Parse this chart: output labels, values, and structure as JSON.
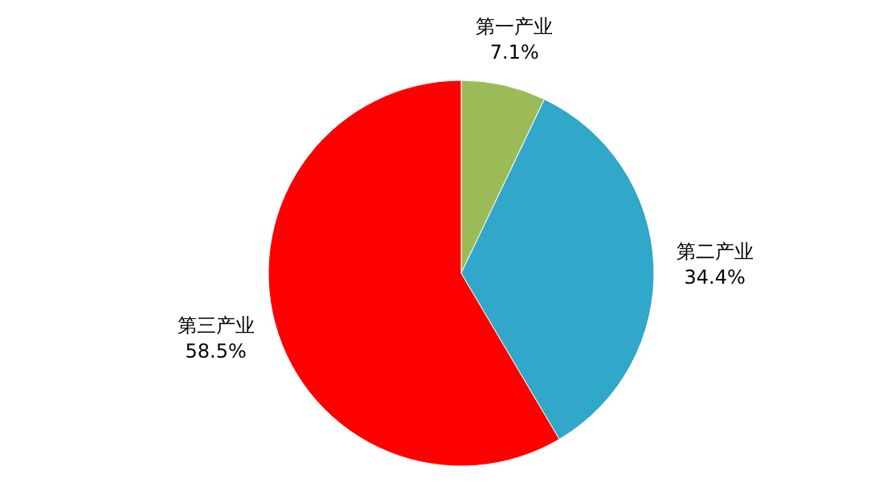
{
  "chart_data": {
    "type": "pie",
    "categories": [
      "第一产业",
      "第二产业",
      "第三产业"
    ],
    "values": [
      7.1,
      34.4,
      58.5
    ],
    "colors": [
      "#9bbb59",
      "#31a7c9",
      "#ff0000"
    ],
    "value_labels": [
      "7.1%",
      "34.4%",
      "58.5%"
    ]
  }
}
